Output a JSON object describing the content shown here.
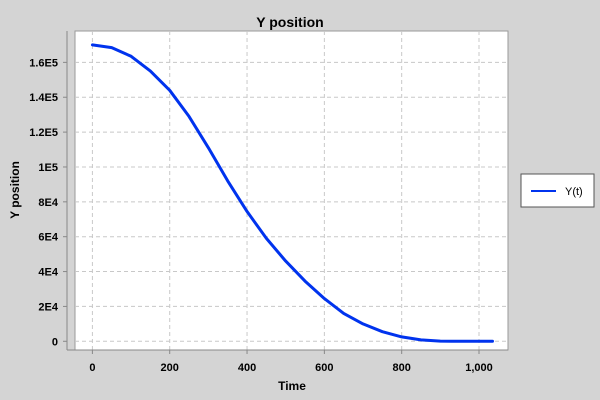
{
  "chart_data": {
    "type": "line",
    "title": "Y position",
    "xlabel": "Time",
    "ylabel": "Y position",
    "xlim": [
      -45,
      1075
    ],
    "ylim": [
      -5000,
      178000
    ],
    "xticks": [
      0,
      200,
      400,
      600,
      800,
      1000
    ],
    "xtick_labels": [
      "0",
      "200",
      "400",
      "600",
      "800",
      "1,000"
    ],
    "yticks": [
      0,
      20000,
      40000,
      60000,
      80000,
      100000,
      120000,
      140000,
      160000
    ],
    "ytick_labels": [
      "0",
      "2E4",
      "4E4",
      "6E4",
      "8E4",
      "1E5",
      "1.2E5",
      "1.4E5",
      "1.6E5"
    ],
    "grid": true,
    "legend_position": "right",
    "series": [
      {
        "name": "Y(t)",
        "color": "#0033ee",
        "x": [
          0,
          50,
          100,
          150,
          200,
          250,
          300,
          350,
          400,
          450,
          500,
          550,
          600,
          650,
          700,
          750,
          800,
          850,
          900,
          930,
          960,
          1000,
          1035
        ],
        "y": [
          170000,
          168500,
          163500,
          155000,
          144000,
          129000,
          111000,
          92000,
          74500,
          59000,
          46000,
          34500,
          24500,
          16000,
          10000,
          5500,
          2500,
          800,
          100,
          0,
          0,
          0,
          0
        ]
      }
    ]
  }
}
